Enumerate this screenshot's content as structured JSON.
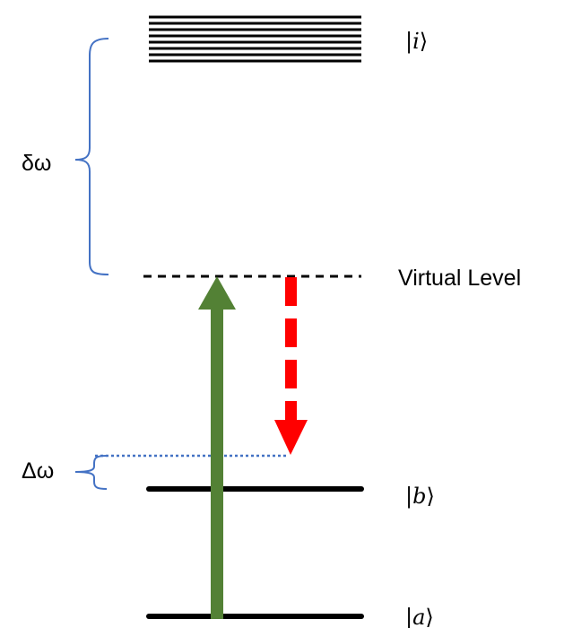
{
  "levels": {
    "intermediate": {
      "label_open": "|",
      "label_symbol": "i",
      "label_close": "⟩"
    },
    "virtual": {
      "label": "Virtual Level"
    },
    "b": {
      "label_open": "|",
      "label_symbol": "b",
      "label_close": "⟩"
    },
    "a": {
      "label_open": "|",
      "label_symbol": "a",
      "label_close": "⟩"
    }
  },
  "brackets": {
    "delta_small": {
      "label": "δω"
    },
    "delta_large": {
      "label": "Δω"
    }
  },
  "colors": {
    "levels": "#000000",
    "bracket": "#4472c4",
    "pump_arrow": "#538135",
    "stokes_arrow": "#ff0000",
    "dotted_line": "#4472c4"
  }
}
